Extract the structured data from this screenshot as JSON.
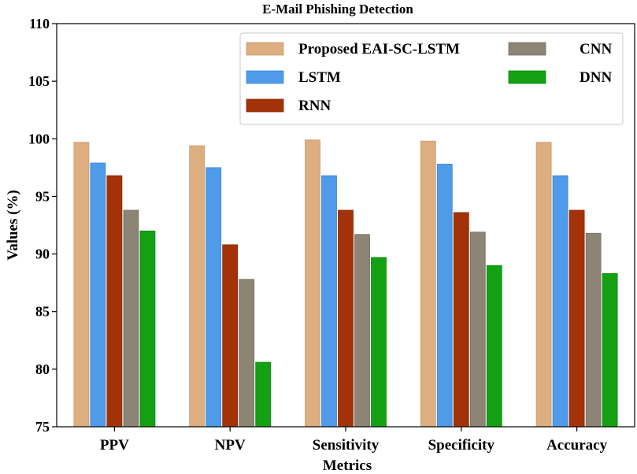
{
  "chart_data": {
    "type": "bar",
    "title": "E-Mail Phishing Detection",
    "xlabel": "Metrics",
    "ylabel": "Values (%)",
    "ylim": [
      75,
      110
    ],
    "yticks": [
      75,
      80,
      85,
      90,
      95,
      100,
      105,
      110
    ],
    "categories": [
      "PPV",
      "NPV",
      "Sensitivity",
      "Specificity",
      "Accuracy"
    ],
    "series": [
      {
        "name": "Proposed EAI-SC-LSTM",
        "color": "#DDAE80",
        "edge": "#C79A6E",
        "values": [
          99.7,
          99.4,
          99.9,
          99.8,
          99.7
        ]
      },
      {
        "name": "LSTM",
        "color": "#4F9BEA",
        "edge": "#3F86D0",
        "values": [
          97.9,
          97.5,
          96.8,
          97.8,
          96.8
        ]
      },
      {
        "name": "RNN",
        "color": "#A33209",
        "edge": "#862807",
        "values": [
          96.8,
          90.8,
          93.8,
          93.6,
          93.8
        ]
      },
      {
        "name": "CNN",
        "color": "#8C8474",
        "edge": "#766F62",
        "values": [
          93.8,
          87.8,
          91.7,
          91.9,
          91.8
        ]
      },
      {
        "name": "DNN",
        "color": "#13A113",
        "edge": "#0E860E",
        "values": [
          92.0,
          80.6,
          89.7,
          89.0,
          88.3
        ]
      }
    ],
    "legend_position": "top-right",
    "grid": false
  }
}
